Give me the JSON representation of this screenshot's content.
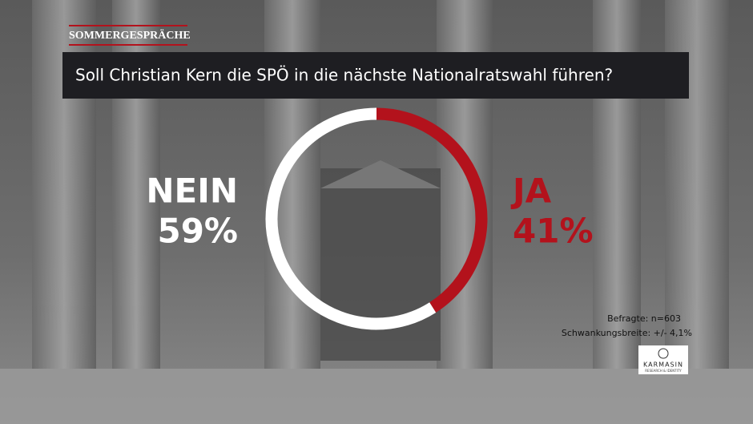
{
  "chart_data": {
    "type": "donut",
    "brand": "SOMMERGESPRÄCHE",
    "title": "Soll Christian Kern die SPÖ in die nächste Nationalratswahl führen?",
    "categories": [
      "JA",
      "NEIN"
    ],
    "values": [
      41,
      59
    ],
    "value_labels": [
      "41%",
      "59%"
    ],
    "colors": [
      "#b3121c",
      "#ffffff"
    ],
    "notes": [
      "Befragte: n=603",
      "Schwankungsbreite: +/- 4,1%"
    ],
    "logo": {
      "name": "KARMASIN",
      "tagline": "RESEARCH & IDENTITY"
    }
  }
}
